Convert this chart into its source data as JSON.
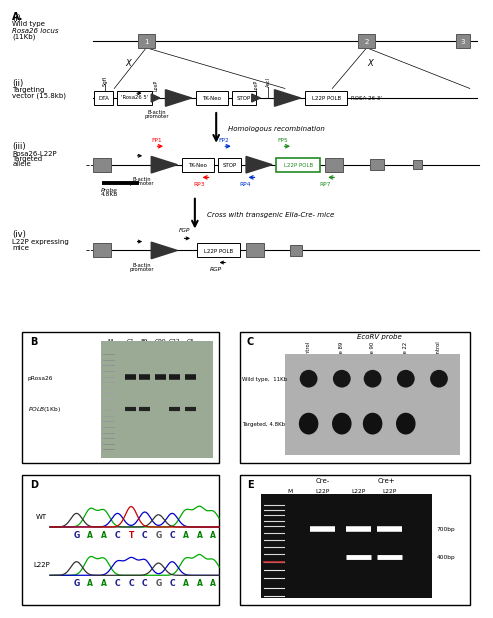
{
  "title": "A.",
  "bg_color": "#ffffff",
  "fig_width": 4.74,
  "fig_height": 6.05,
  "panel_B": {
    "label": "B",
    "lane_labels": [
      "M",
      "C1",
      "89",
      "C90",
      "C22",
      "C5"
    ],
    "band_labels": [
      "pRosa26",
      "POLB(1Kb)"
    ]
  },
  "panel_C": {
    "label": "C",
    "title": "EcoRV probe",
    "col_labels": [
      "Pos. Control",
      "Clone 89",
      "Clone 90",
      "Clone 22",
      "Neg. Control"
    ],
    "band_labels": [
      "Wild type,  11Kb",
      "Targeted, 4.8Kb"
    ],
    "wt_has_band": [
      true,
      true,
      true,
      true,
      true
    ],
    "tg_has_band": [
      true,
      true,
      true,
      true,
      false
    ]
  },
  "panel_D": {
    "label": "D",
    "wt_label": "WT",
    "l22p_label": "L22P",
    "wt_seq": [
      "G",
      "A",
      "A",
      "C",
      "T",
      "C",
      "G",
      "C",
      "A",
      "A",
      "A"
    ],
    "wt_colors": [
      "#1a1a8c",
      "#008000",
      "#008000",
      "#1a1a8c",
      "#cc0000",
      "#1a1a8c",
      "#555555",
      "#1a1a8c",
      "#008000",
      "#008000",
      "#008000"
    ],
    "l22p_seq": [
      "G",
      "A",
      "A",
      "C",
      "C",
      "C",
      "G",
      "C",
      "A",
      "A",
      "A"
    ],
    "l22p_colors": [
      "#1a1a8c",
      "#008000",
      "#008000",
      "#1a1a8c",
      "#1a1a8c",
      "#1a1a8c",
      "#555555",
      "#1a1a8c",
      "#008000",
      "#008000",
      "#008000"
    ]
  },
  "panel_E": {
    "label": "E",
    "cre_neg_label": "Cre-",
    "cre_pos_label": "Cre+",
    "lane_labels": [
      "M",
      "L22P",
      "L22P",
      "L22P"
    ],
    "band_size_labels": [
      "700bp",
      "400bp"
    ],
    "bg_color": "#111111"
  }
}
